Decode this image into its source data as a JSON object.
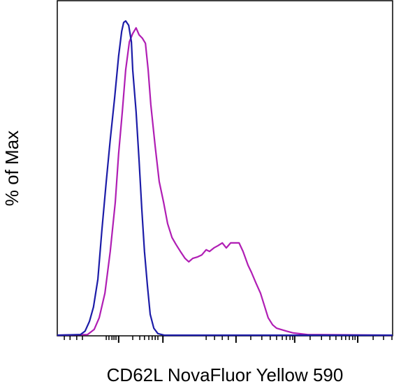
{
  "chart_data": {
    "type": "line",
    "ylabel": "% of Max",
    "xlabel": "CD62L NovaFluor Yellow 590",
    "xlim": [
      0,
      100
    ],
    "ylim": [
      0,
      106
    ],
    "xticks": [
      18.3,
      31.5,
      53.3,
      70.8,
      89.6
    ],
    "xminorticks": [
      2.1,
      3.8,
      5.8,
      7.5,
      14.6,
      15.4,
      16.3,
      16.9,
      17.5,
      22.5,
      24.6,
      26.0,
      27.3,
      28.3,
      29.2,
      30.0,
      44.4,
      46.9,
      49.2,
      51.0,
      57.7,
      61.0,
      63.5,
      65.4,
      67.1,
      68.3,
      69.4,
      70.2,
      75.4,
      78.8,
      81.3,
      83.1,
      84.8,
      86.0,
      87.1,
      88.1,
      88.8,
      94.2,
      97.3,
      99.8
    ],
    "series": [
      {
        "color": "#1c1ca8",
        "x": [
          0,
          6.9,
          8.3,
          9.6,
          10.8,
          12.1,
          13.3,
          14.6,
          15.8,
          17.1,
          18.3,
          19.2,
          19.8,
          20.4,
          21.3,
          22.1,
          22.5,
          23.5,
          24.4,
          25.2,
          26.0,
          26.9,
          27.7,
          28.8,
          30.0,
          31.9,
          100
        ],
        "values": [
          0.2,
          0.4,
          1.5,
          4.6,
          9.1,
          17.9,
          33.3,
          48.8,
          62.0,
          75.3,
          88.5,
          96.3,
          99.1,
          99.6,
          98.2,
          93.0,
          84.1,
          70.9,
          55.4,
          40.0,
          26.7,
          15.7,
          6.8,
          2.4,
          0.7,
          0.2,
          0.2
        ]
      },
      {
        "color": "#b01eb4",
        "x": [
          0,
          9.0,
          11.0,
          12.5,
          14.2,
          15.8,
          17.3,
          18.3,
          19.4,
          20.4,
          21.5,
          22.5,
          23.5,
          24.4,
          25.4,
          26.3,
          27.1,
          27.9,
          29.2,
          30.4,
          31.7,
          32.9,
          34.2,
          35.4,
          36.7,
          38.1,
          39.2,
          40.4,
          41.7,
          43.1,
          44.4,
          45.4,
          46.7,
          47.9,
          49.2,
          50.4,
          51.7,
          52.9,
          54.2,
          55.4,
          56.9,
          57.9,
          59.2,
          60.6,
          61.9,
          62.9,
          64.2,
          65.4,
          66.7,
          68.3,
          70.4,
          74.6,
          100
        ],
        "values": [
          0.2,
          0.4,
          2.0,
          5.7,
          13.5,
          26.7,
          42.2,
          57.6,
          70.9,
          84.1,
          93.0,
          95.6,
          97.4,
          95.2,
          94.1,
          92.5,
          84.1,
          73.1,
          59.8,
          48.8,
          42.2,
          35.5,
          31.1,
          28.9,
          26.7,
          24.5,
          23.4,
          24.5,
          24.9,
          25.6,
          27.2,
          26.7,
          27.8,
          28.5,
          29.4,
          27.8,
          29.4,
          29.4,
          29.4,
          26.7,
          22.3,
          20.1,
          16.8,
          13.5,
          9.1,
          5.7,
          3.5,
          2.4,
          2.0,
          1.5,
          0.9,
          0.4,
          0.2
        ]
      }
    ]
  }
}
